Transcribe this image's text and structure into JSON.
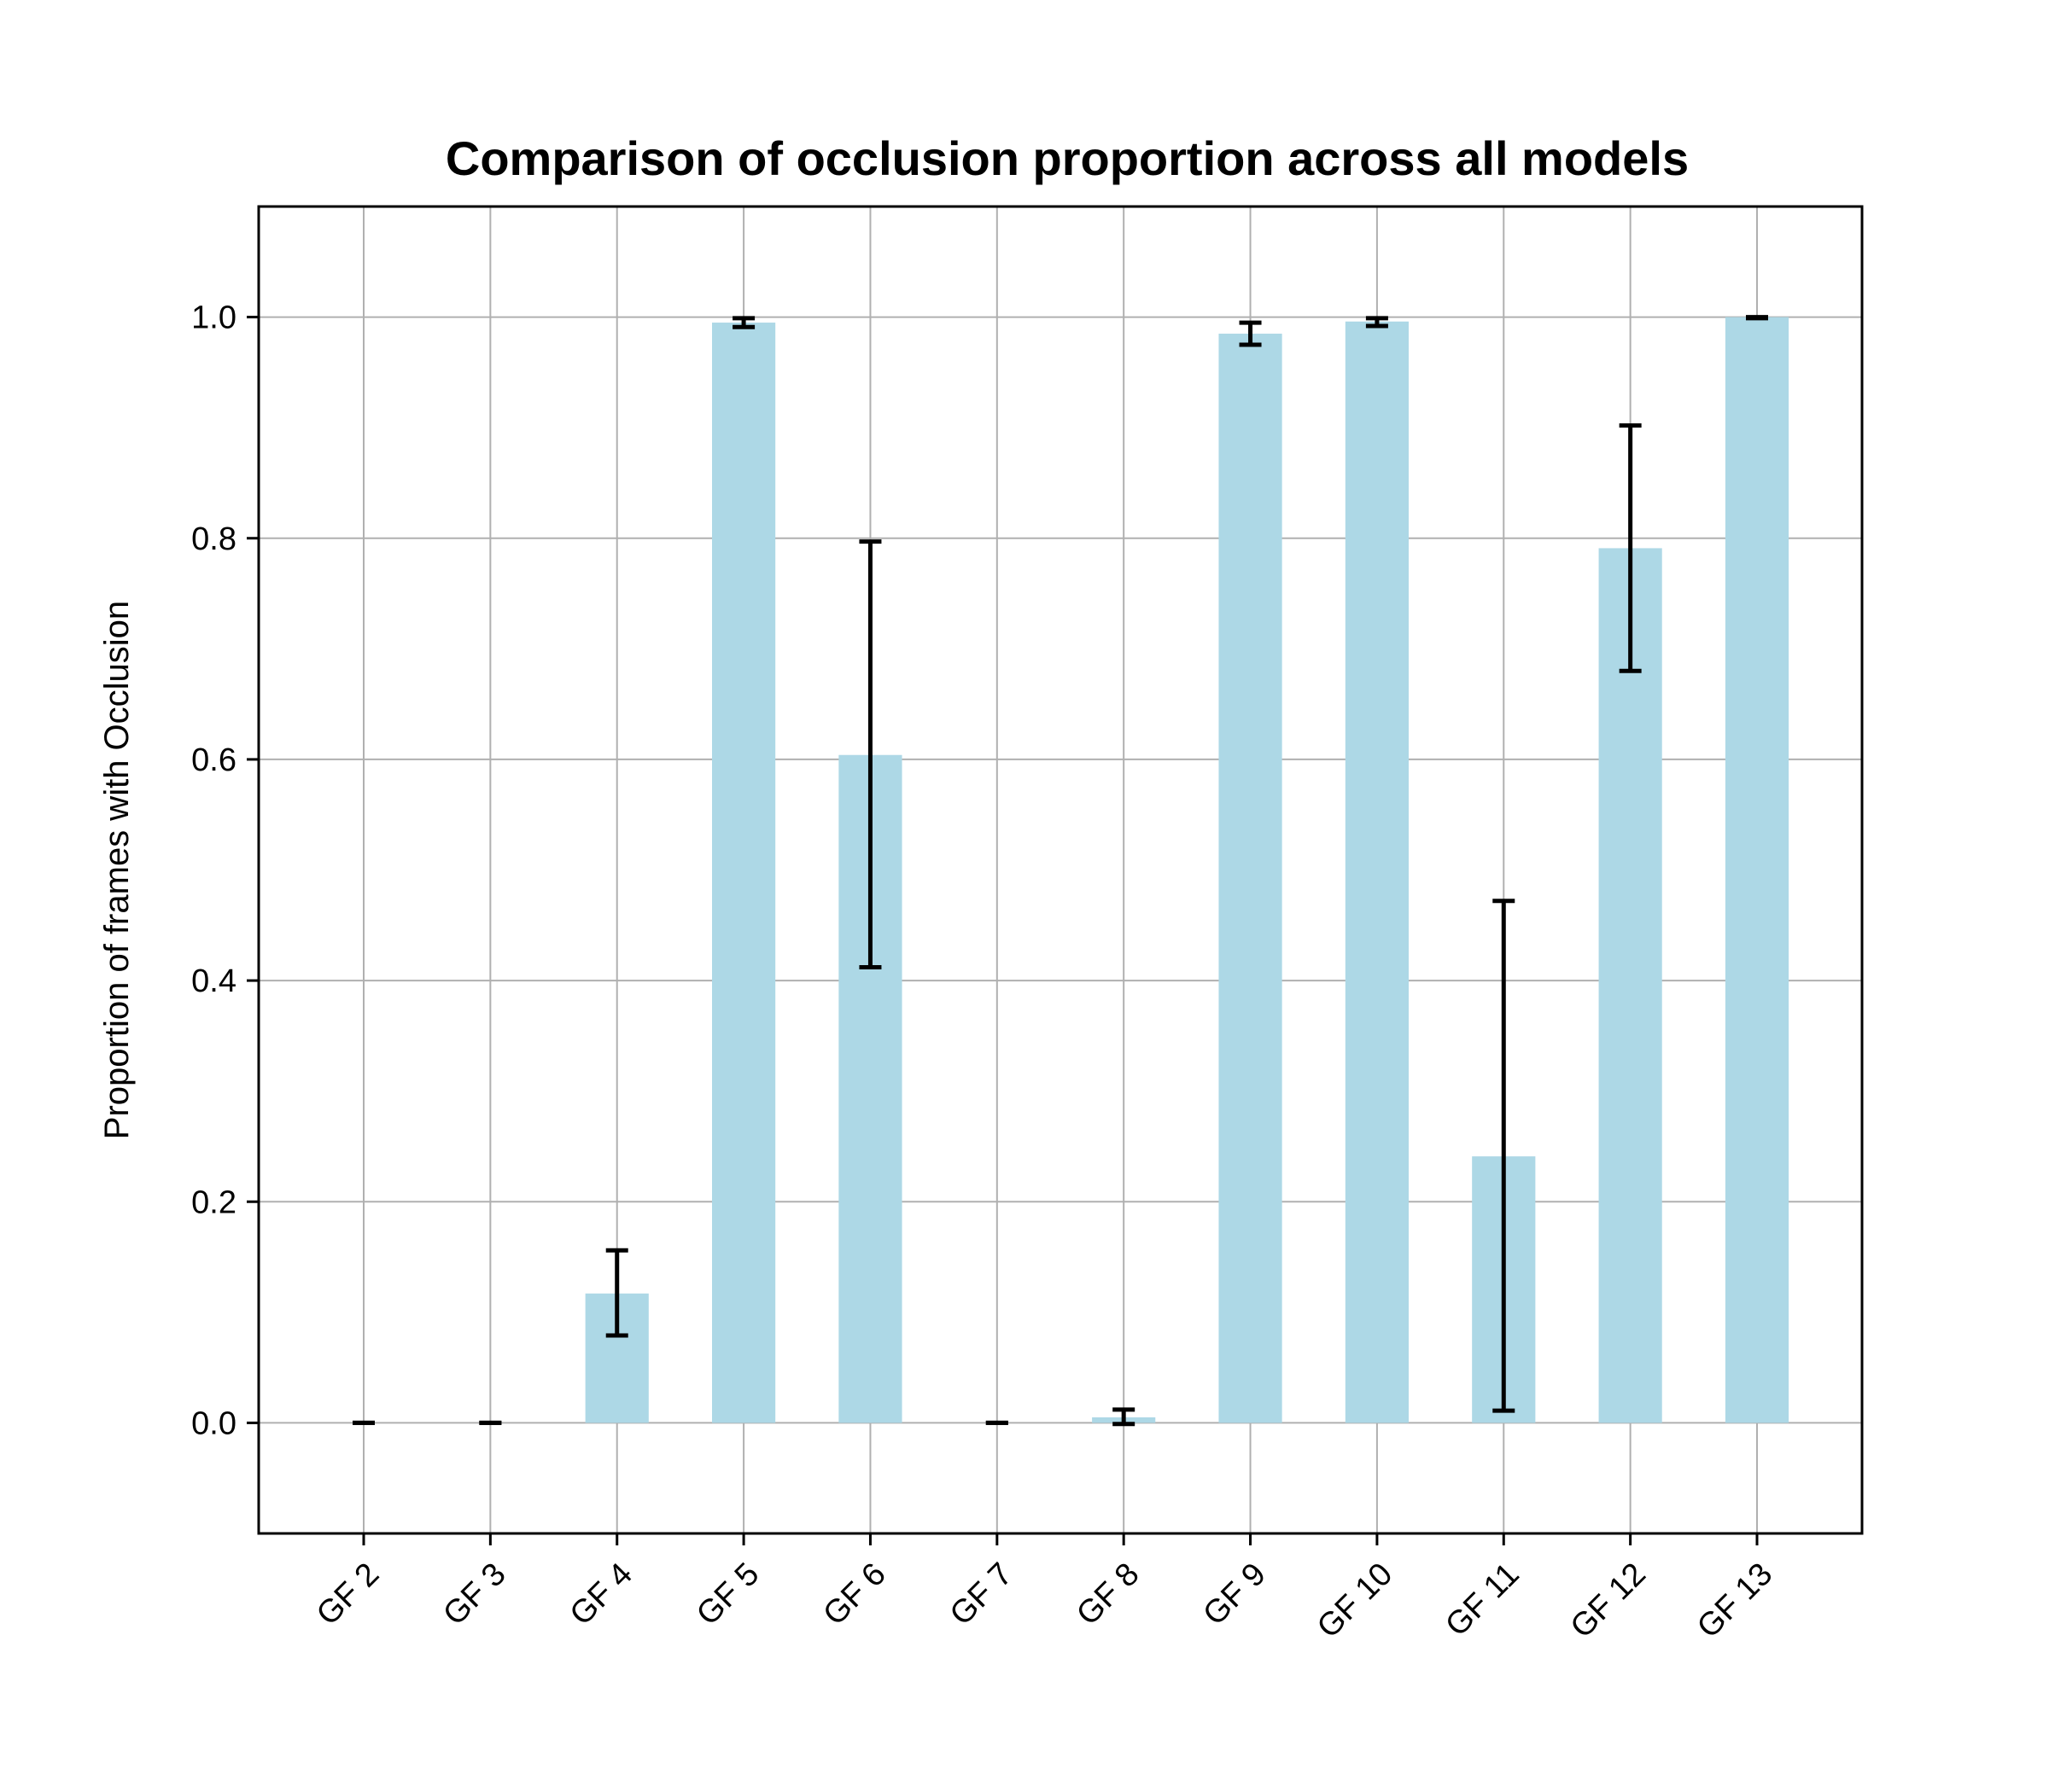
{
  "chart_data": {
    "type": "bar",
    "title": "Comparison of occlusion proportion across all models",
    "xlabel": "",
    "ylabel": "Proportion of frames with Occlusion",
    "categories": [
      "GF 2",
      "GF 3",
      "GF 4",
      "GF 5",
      "GF 6",
      "GF 7",
      "GF 8",
      "GF 9",
      "GF 10",
      "GF 11",
      "GF 12",
      "GF 13"
    ],
    "values": [
      0.0,
      0.0,
      0.117,
      0.995,
      0.604,
      0.0,
      0.005,
      0.985,
      0.996,
      0.241,
      0.791,
      1.0
    ],
    "error_low": [
      0.0,
      0.0,
      0.079,
      0.991,
      0.412,
      0.0,
      -0.001,
      0.975,
      0.992,
      0.011,
      0.68,
      0.999
    ],
    "error_high": [
      0.0,
      0.0,
      0.156,
      0.999,
      0.797,
      0.0,
      0.012,
      0.995,
      0.999,
      0.472,
      0.902,
      1.0
    ],
    "ylim": [
      -0.1,
      1.1
    ],
    "yticks": [
      0.0,
      0.2,
      0.4,
      0.6,
      0.8,
      1.0
    ],
    "ytick_labels": [
      "0.0",
      "0.2",
      "0.4",
      "0.6",
      "0.8",
      "1.0"
    ],
    "grid": true,
    "bar_color": "#add8e6",
    "error_color": "#000000"
  }
}
